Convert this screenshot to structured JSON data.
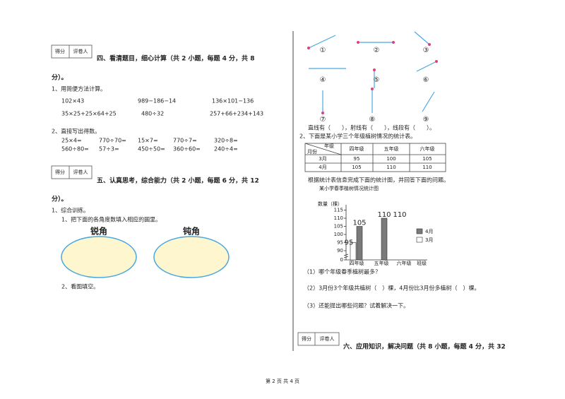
{
  "section4": {
    "score_box": [
      "得分",
      "评卷人"
    ],
    "title": "四、看清题目，细心计算（共 2 小题，每题 4 分，共 8",
    "title_end": "分）。",
    "q1": {
      "prompt": "1、用简便方法计算。",
      "items": [
        "102×43",
        "989−186−14",
        "136×101−136",
        "35×25+25×64+25",
        "480÷32",
        "257+66+234+143"
      ]
    },
    "q2": {
      "prompt": "2、直接写出得数。",
      "items": [
        "25×4=",
        "770÷70=",
        "15×7=",
        "770÷7=",
        "320÷8=",
        "560÷80=",
        "57÷3=",
        "450÷50=",
        "360÷60=",
        "240÷4="
      ]
    }
  },
  "section5": {
    "score_box": [
      "得分",
      "评卷人"
    ],
    "title": "五、认真思考，综合能力（共 2 小题，每题 6 分，共 12",
    "title_end": "分）。",
    "q1": {
      "prompt": "1、综合训练。",
      "sub1": "1、把下面的各角度数填入相应的圆里。",
      "circles": [
        "锐角",
        "钝角"
      ],
      "sub2": "2、看图填空。",
      "figures": [
        "①",
        "②",
        "③",
        "④",
        "⑤",
        "⑥",
        "⑦",
        "⑧",
        "⑨"
      ],
      "fill": "直线有（　　），射线有（　　），线段有（　　）。"
    },
    "q2": {
      "prompt": "2、下面是某小学三个年级植树情况的统计表。",
      "table": {
        "corner_top": "年级",
        "corner_bottom": "月份",
        "header": [
          "四年级",
          "五年级",
          "六年级"
        ],
        "rows": [
          [
            "3月",
            "95",
            "100",
            "105"
          ],
          [
            "4月",
            "105",
            "110",
            "110"
          ]
        ]
      },
      "instruction": "根据统计表信息完成下面的统计图，并回答下面的问题。",
      "chart": {
        "title": "某小学春季植树情况统计图",
        "y_label": "数量（棵）",
        "yticks": [
          0,
          90,
          95,
          100,
          105,
          110,
          115
        ],
        "categories": [
          "四年级",
          "五年级",
          "六年级"
        ],
        "x_label": "班级",
        "series": [
          {
            "name": "4月",
            "color": "#7a7a7a",
            "values": [
              105,
              110,
              null
            ]
          },
          {
            "name": "3月",
            "color": "#ffffff",
            "values": [
              95,
              null,
              null
            ]
          }
        ],
        "extra_label": "110"
      },
      "questions": [
        "（1）哪个年级春季植树最多？",
        "（2）3月份3个年级共植树（　）棵，4月份比3月份多植树（　）棵。",
        "（3）还能提出哪些问题？试着解决一下。"
      ]
    }
  },
  "section6": {
    "score_box": [
      "得分",
      "评卷人"
    ],
    "title": "六、应用知识，解决问题（共 8 小题，每题 4 分，共 32"
  },
  "footer": "第 2 页 共 4 页"
}
